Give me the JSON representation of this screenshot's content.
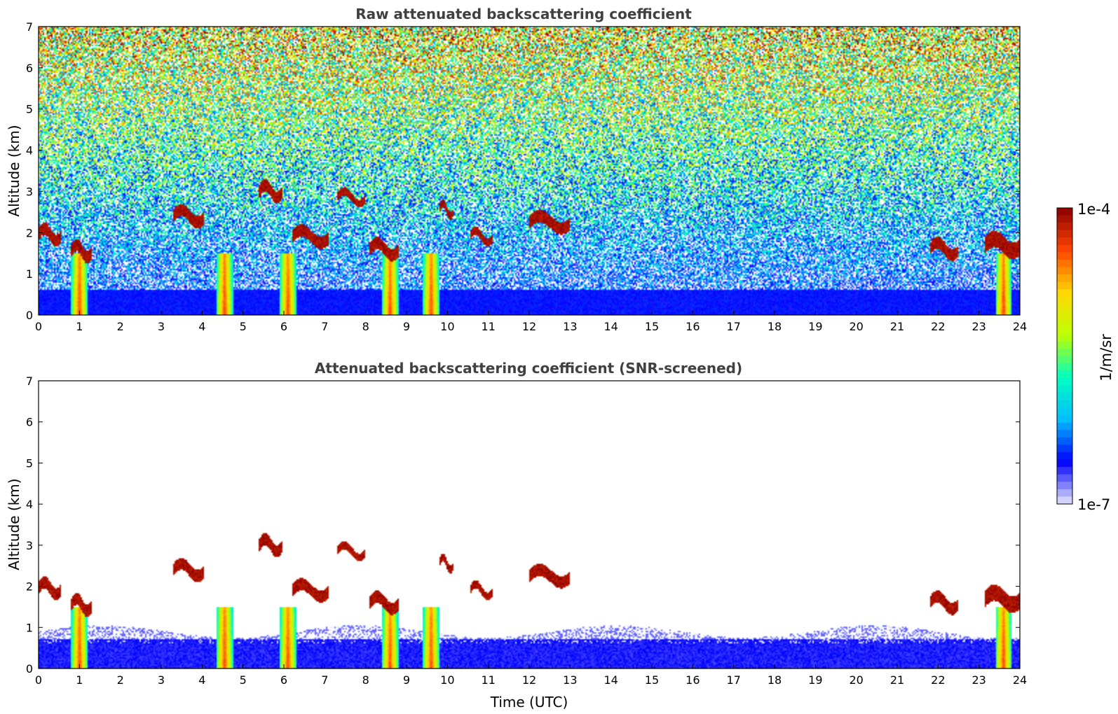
{
  "chart_data": [
    {
      "type": "heatmap",
      "title": "Raw attenuated backscattering coefficient",
      "xlabel": "",
      "ylabel": "Altitude (km)",
      "xlim": [
        0,
        24
      ],
      "ylim": [
        0,
        7
      ],
      "xticks": [
        0,
        1,
        2,
        3,
        4,
        5,
        6,
        7,
        8,
        9,
        10,
        11,
        12,
        13,
        14,
        15,
        16,
        17,
        18,
        19,
        20,
        21,
        22,
        23,
        24
      ],
      "yticks": [
        0,
        1,
        2,
        3,
        4,
        5,
        6,
        7
      ],
      "background_noise": true,
      "clouds": [
        {
          "t0": 0.0,
          "t1": 0.55,
          "alt": 1.95,
          "thick": 0.3
        },
        {
          "t0": 0.8,
          "t1": 1.3,
          "alt": 1.55,
          "thick": 0.3
        },
        {
          "t0": 3.3,
          "t1": 4.05,
          "alt": 2.4,
          "thick": 0.3
        },
        {
          "t0": 5.4,
          "t1": 5.95,
          "alt": 3.0,
          "thick": 0.3
        },
        {
          "t0": 6.2,
          "t1": 7.1,
          "alt": 1.9,
          "thick": 0.3
        },
        {
          "t0": 7.3,
          "t1": 8.0,
          "alt": 2.85,
          "thick": 0.2
        },
        {
          "t0": 8.1,
          "t1": 8.8,
          "alt": 1.6,
          "thick": 0.3
        },
        {
          "t0": 9.8,
          "t1": 10.15,
          "alt": 2.55,
          "thick": 0.2
        },
        {
          "t0": 10.55,
          "t1": 11.1,
          "alt": 1.9,
          "thick": 0.2
        },
        {
          "t0": 12.0,
          "t1": 13.0,
          "alt": 2.25,
          "thick": 0.3
        },
        {
          "t0": 21.8,
          "t1": 22.5,
          "alt": 1.6,
          "thick": 0.3
        },
        {
          "t0": 23.15,
          "t1": 24.0,
          "alt": 1.7,
          "thick": 0.4
        }
      ],
      "precipitation_shafts": [
        1.0,
        4.55,
        6.1,
        8.6,
        9.6,
        23.6
      ]
    },
    {
      "type": "heatmap",
      "title": "Attenuated backscattering coefficient (SNR-screened)",
      "xlabel": "Time (UTC)",
      "ylabel": "Altitude (km)",
      "xlim": [
        0,
        24
      ],
      "ylim": [
        0,
        7
      ],
      "xticks": [
        0,
        1,
        2,
        3,
        4,
        5,
        6,
        7,
        8,
        9,
        10,
        11,
        12,
        13,
        14,
        15,
        16,
        17,
        18,
        19,
        20,
        21,
        22,
        23,
        24
      ],
      "yticks": [
        0,
        1,
        2,
        3,
        4,
        5,
        6,
        7
      ],
      "background_noise": false
    }
  ],
  "colorbar": {
    "label": "1/m/sr",
    "max_label": "1e-4",
    "min_label": "1e-7",
    "colormap": [
      "#e6e6fa",
      "#0000ff",
      "#00bfff",
      "#00ffbf",
      "#bfff00",
      "#ffd700",
      "#ff4500",
      "#8b0000"
    ]
  }
}
